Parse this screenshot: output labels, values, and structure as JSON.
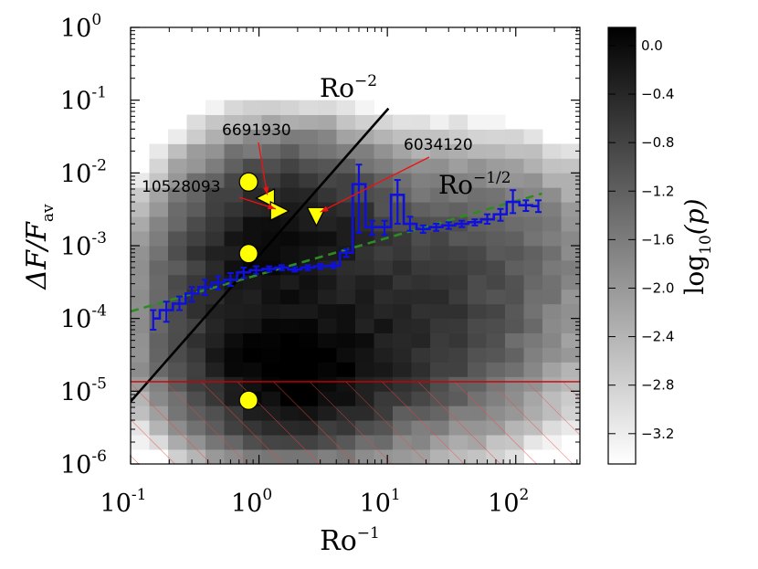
{
  "chart_data": {
    "type": "heatmap",
    "title": "",
    "xlabel": "Ro",
    "xlabel_sup": "−1",
    "ylabel_main": "ΔF/F",
    "ylabel_sub": "av",
    "x_scale": "log",
    "y_scale": "log",
    "xlim": [
      0.1,
      316
    ],
    "ylim": [
      1e-06,
      1
    ],
    "x_ticks": [
      {
        "value": 0.1,
        "base": "10",
        "exp": "-1"
      },
      {
        "value": 1,
        "base": "10",
        "exp": "0"
      },
      {
        "value": 10,
        "base": "10",
        "exp": "1"
      },
      {
        "value": 100,
        "base": "10",
        "exp": "2"
      }
    ],
    "y_ticks": [
      {
        "value": 1e-06,
        "base": "10",
        "exp": "-6"
      },
      {
        "value": 1e-05,
        "base": "10",
        "exp": "-5"
      },
      {
        "value": 0.0001,
        "base": "10",
        "exp": "-4"
      },
      {
        "value": 0.001,
        "base": "10",
        "exp": "-3"
      },
      {
        "value": 0.01,
        "base": "10",
        "exp": "-2"
      },
      {
        "value": 0.1,
        "base": "10",
        "exp": "-1"
      },
      {
        "value": 1,
        "base": "10",
        "exp": "0"
      }
    ],
    "colorbar": {
      "label_prefix": "log",
      "label_sub": "10",
      "label_suffix": "(p)",
      "range": [
        -3.45,
        0.15
      ],
      "ticks": [
        "0.0",
        "−0.4",
        "−0.8",
        "−1.2",
        "−1.6",
        "−2.0",
        "−2.4",
        "−2.8",
        "−3.2"
      ],
      "tick_values": [
        0.0,
        -0.4,
        -0.8,
        -1.2,
        -1.6,
        -2.0,
        -2.4,
        -2.8,
        -3.2
      ]
    },
    "density": {
      "x_bins_log10": [
        -1,
        2.5
      ],
      "y_bins_log10": [
        -6,
        0
      ],
      "nx": 24,
      "ny": 30,
      "description_colors": {
        "low": "#ffffff",
        "high": "#000000"
      }
    },
    "lines": [
      {
        "name": "Ro^-2 relation",
        "label": "Ro",
        "label_sup": "−2",
        "color": "#000000",
        "x": [
          0.1,
          10.2
        ],
        "y": [
          7.2e-06,
          0.077
        ],
        "style": "solid"
      },
      {
        "name": "Ro^-1/2 relation",
        "label": "Ro",
        "label_sup": "−1/2",
        "color": "#2e8b22",
        "x": [
          0.1,
          160
        ],
        "y": [
          0.000125,
          0.0052
        ],
        "style": "dashed"
      },
      {
        "name": "noise threshold",
        "color": "#cc0000",
        "x": [
          0.1,
          316
        ],
        "y": [
          1.35e-05,
          1.35e-05
        ],
        "style": "solid"
      }
    ],
    "binned_median": {
      "color": "#1010dd",
      "points": [
        {
          "x": 0.15,
          "y": 0.0001,
          "err": [
            7e-05,
            0.00013
          ]
        },
        {
          "x": 0.19,
          "y": 0.00013,
          "err": [
            9e-05,
            0.00017
          ]
        },
        {
          "x": 0.24,
          "y": 0.00016,
          "err": [
            0.00013,
            0.0002
          ]
        },
        {
          "x": 0.3,
          "y": 0.00022,
          "err": [
            0.00017,
            0.00027
          ]
        },
        {
          "x": 0.38,
          "y": 0.00027,
          "err": [
            0.00021,
            0.00034
          ]
        },
        {
          "x": 0.48,
          "y": 0.00031,
          "err": [
            0.00025,
            0.00038
          ]
        },
        {
          "x": 0.6,
          "y": 0.00034,
          "err": [
            0.00028,
            0.00042
          ]
        },
        {
          "x": 0.76,
          "y": 0.00043,
          "err": [
            0.00036,
            0.0005
          ]
        },
        {
          "x": 0.95,
          "y": 0.00046,
          "err": [
            0.00041,
            0.00052
          ]
        },
        {
          "x": 1.2,
          "y": 0.00048,
          "err": [
            0.00044,
            0.00052
          ]
        },
        {
          "x": 1.5,
          "y": 0.0005,
          "err": [
            0.00046,
            0.00054
          ]
        },
        {
          "x": 1.9,
          "y": 0.00047,
          "err": [
            0.00044,
            0.00051
          ]
        },
        {
          "x": 2.4,
          "y": 0.0005,
          "err": [
            0.00046,
            0.00054
          ]
        },
        {
          "x": 3.0,
          "y": 0.00052,
          "err": [
            0.00048,
            0.00056
          ]
        },
        {
          "x": 3.8,
          "y": 0.00053,
          "err": [
            0.00049,
            0.00058
          ]
        },
        {
          "x": 4.8,
          "y": 0.0008,
          "err": [
            0.0007,
            0.0009
          ]
        },
        {
          "x": 6.0,
          "y": 0.007,
          "err": [
            0.0015,
            0.013
          ]
        },
        {
          "x": 7.6,
          "y": 0.0018,
          "err": [
            0.0014,
            0.0022
          ]
        },
        {
          "x": 9.5,
          "y": 0.0018,
          "err": [
            0.0014,
            0.0022
          ]
        },
        {
          "x": 12,
          "y": 0.005,
          "err": [
            0.002,
            0.008
          ]
        },
        {
          "x": 15,
          "y": 0.002,
          "err": [
            0.0016,
            0.0025
          ]
        },
        {
          "x": 19,
          "y": 0.0017,
          "err": [
            0.0015,
            0.0019
          ]
        },
        {
          "x": 24,
          "y": 0.0018,
          "err": [
            0.0016,
            0.002
          ]
        },
        {
          "x": 30,
          "y": 0.0019,
          "err": [
            0.0017,
            0.0021
          ]
        },
        {
          "x": 38,
          "y": 0.002,
          "err": [
            0.0018,
            0.0022
          ]
        },
        {
          "x": 48,
          "y": 0.0021,
          "err": [
            0.0019,
            0.0023
          ]
        },
        {
          "x": 60,
          "y": 0.0023,
          "err": [
            0.002,
            0.0027
          ]
        },
        {
          "x": 76,
          "y": 0.0027,
          "err": [
            0.0022,
            0.0032
          ]
        },
        {
          "x": 95,
          "y": 0.004,
          "err": [
            0.0028,
            0.0058
          ]
        },
        {
          "x": 120,
          "y": 0.0036,
          "err": [
            0.003,
            0.0042
          ]
        },
        {
          "x": 150,
          "y": 0.0035,
          "err": [
            0.0029,
            0.0042
          ]
        }
      ]
    },
    "highlighted_stars": [
      {
        "name": "circle-high",
        "marker": "circle",
        "x": 0.83,
        "y": 0.0075
      },
      {
        "name": "circle-mid",
        "marker": "circle",
        "x": 0.83,
        "y": 0.00078
      },
      {
        "name": "circle-low",
        "marker": "circle",
        "x": 0.83,
        "y": 7.5e-06
      },
      {
        "name": "6691930",
        "marker": "triangle-left",
        "x": 1.12,
        "y": 0.0045
      },
      {
        "name": "10528093",
        "marker": "triangle-right",
        "x": 1.45,
        "y": 0.003
      },
      {
        "name": "6034120",
        "marker": "triangle-down",
        "x": 2.8,
        "y": 0.0025
      }
    ],
    "annotations": [
      {
        "text": "6691930",
        "target_x": 1.16,
        "target_y": 0.005
      },
      {
        "text": "10528093",
        "target_x": 1.35,
        "target_y": 0.0032
      },
      {
        "text": "6034120",
        "target_x": 3.0,
        "target_y": 0.0029
      }
    ],
    "hatched_region": {
      "y_below": 1.35e-05,
      "color": "#ee4444"
    }
  }
}
